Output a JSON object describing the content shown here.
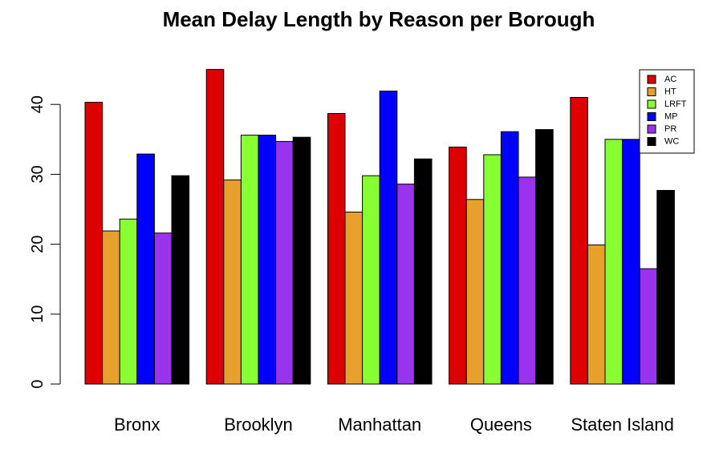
{
  "chart_data": {
    "type": "bar",
    "title": "Mean Delay Length by Reason per Borough",
    "xlabel": "",
    "ylabel": "",
    "ylim": [
      0,
      46
    ],
    "yticks": [
      0,
      10,
      20,
      30,
      40
    ],
    "categories": [
      "Bronx",
      "Brooklyn",
      "Manhattan",
      "Queens",
      "Staten Island"
    ],
    "series": [
      {
        "name": "AC",
        "color": "#dd0000",
        "values": [
          40.3,
          45.0,
          38.7,
          33.9,
          41.0
        ]
      },
      {
        "name": "HT",
        "color": "#e8a02c",
        "values": [
          21.9,
          29.2,
          24.6,
          26.4,
          19.9
        ]
      },
      {
        "name": "LRFT",
        "color": "#88ff33",
        "values": [
          23.6,
          35.6,
          29.8,
          32.8,
          35.0
        ]
      },
      {
        "name": "MP",
        "color": "#0000ff",
        "values": [
          32.9,
          35.6,
          41.9,
          36.1,
          35.0
        ]
      },
      {
        "name": "PR",
        "color": "#9933ee",
        "values": [
          21.6,
          34.7,
          28.6,
          29.6,
          16.5
        ]
      },
      {
        "name": "WC",
        "color": "#000000",
        "values": [
          29.8,
          35.3,
          32.2,
          36.4,
          27.7
        ]
      }
    ],
    "legend_position": "top-right",
    "grid": false
  }
}
